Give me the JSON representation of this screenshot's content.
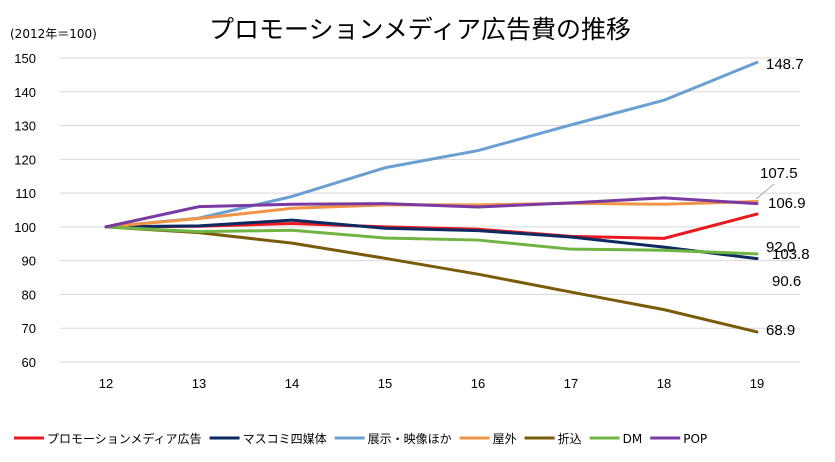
{
  "chart_data": {
    "type": "line",
    "title": "プロモーションメディア広告費の推移",
    "subtitle": "(2012年＝100)",
    "x": [
      "12",
      "13",
      "14",
      "15",
      "16",
      "17",
      "18",
      "19"
    ],
    "ylim": [
      60,
      150
    ],
    "yticks": [
      60,
      70,
      80,
      90,
      100,
      110,
      120,
      130,
      140,
      150
    ],
    "grid": true,
    "legend_position": "bottom",
    "series": [
      {
        "name": "プロモーションメディア広告",
        "color": "#e8191f",
        "values": [
          100,
          100.2,
          101.0,
          100.0,
          99.3,
          97.2,
          96.6,
          103.8
        ],
        "end_label": "103.8"
      },
      {
        "name": "マスコミ四媒体",
        "color": "#0d2a62",
        "values": [
          100,
          100.3,
          102.0,
          99.6,
          98.9,
          97.0,
          94.0,
          90.6
        ],
        "end_label": "90.6"
      },
      {
        "name": "展示・映像ほか",
        "color": "#6a9fd2",
        "values": [
          100,
          102.6,
          109.0,
          117.5,
          122.6,
          130.2,
          137.5,
          148.7
        ],
        "end_label": "148.7"
      },
      {
        "name": "屋外",
        "color": "#f29447",
        "values": [
          100,
          102.5,
          105.5,
          106.5,
          106.5,
          107.0,
          106.7,
          107.5
        ],
        "end_label": "107.5"
      },
      {
        "name": "折込",
        "color": "#7a5b0a",
        "values": [
          100,
          98.3,
          95.2,
          90.7,
          86.0,
          80.7,
          75.5,
          68.9
        ],
        "end_label": "68.9"
      },
      {
        "name": "DM",
        "color": "#70b443",
        "values": [
          100,
          98.6,
          99.0,
          96.7,
          96.1,
          93.4,
          93.1,
          92.0
        ],
        "end_label": "92.0"
      },
      {
        "name": "POP",
        "color": "#7b3aa3",
        "values": [
          100,
          106.0,
          106.7,
          106.9,
          105.9,
          107.1,
          108.6,
          106.9
        ],
        "end_label": "106.9"
      }
    ]
  }
}
